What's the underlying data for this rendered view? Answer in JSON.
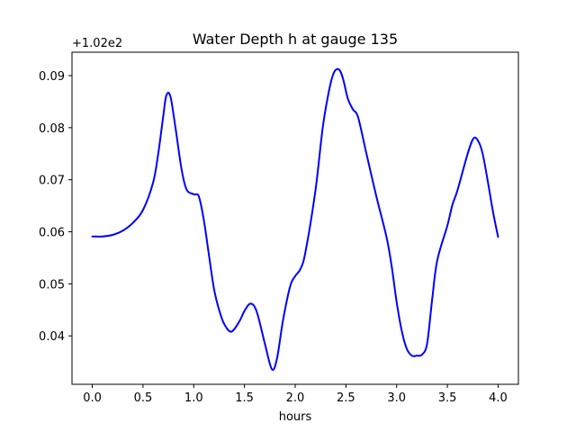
{
  "chart_data": {
    "type": "line",
    "title": "Water Depth h at gauge 135",
    "xlabel": "hours",
    "ylabel": "",
    "offset_label": "+1.02e2",
    "xlim": [
      -0.2,
      4.2
    ],
    "ylim": [
      0.0307,
      0.0945
    ],
    "xticks": [
      0.0,
      0.5,
      1.0,
      1.5,
      2.0,
      2.5,
      3.0,
      3.5,
      4.0
    ],
    "xtick_labels": [
      "0.0",
      "0.5",
      "1.0",
      "1.5",
      "2.0",
      "2.5",
      "3.0",
      "3.5",
      "4.0"
    ],
    "yticks": [
      0.04,
      0.05,
      0.06,
      0.07,
      0.08,
      0.09
    ],
    "ytick_labels": [
      "0.04",
      "0.05",
      "0.06",
      "0.07",
      "0.08",
      "0.09"
    ],
    "grid": false,
    "series": [
      {
        "color": "#0000ff",
        "x": [
          0.0,
          0.1,
          0.2,
          0.3,
          0.4,
          0.5,
          0.6,
          0.65,
          0.7,
          0.73,
          0.77,
          0.82,
          0.88,
          0.93,
          1.0,
          1.05,
          1.1,
          1.15,
          1.2,
          1.25,
          1.3,
          1.37,
          1.45,
          1.5,
          1.56,
          1.62,
          1.7,
          1.77,
          1.82,
          1.88,
          1.95,
          2.0,
          2.05,
          2.1,
          2.2,
          2.27,
          2.33,
          2.38,
          2.43,
          2.47,
          2.52,
          2.57,
          2.62,
          2.7,
          2.8,
          2.9,
          2.95,
          3.0,
          3.05,
          3.1,
          3.15,
          3.2,
          3.25,
          3.3,
          3.35,
          3.4,
          3.5,
          3.55,
          3.6,
          3.7,
          3.76,
          3.81,
          3.85,
          3.9,
          3.95,
          4.0
        ],
        "y": [
          0.0591,
          0.0591,
          0.0594,
          0.0602,
          0.0617,
          0.0642,
          0.0695,
          0.075,
          0.0823,
          0.0862,
          0.086,
          0.08,
          0.072,
          0.0681,
          0.0672,
          0.0668,
          0.0622,
          0.0555,
          0.049,
          0.045,
          0.0423,
          0.0408,
          0.0428,
          0.0448,
          0.0462,
          0.0447,
          0.0386,
          0.0336,
          0.0356,
          0.043,
          0.0495,
          0.0515,
          0.0528,
          0.056,
          0.068,
          0.0798,
          0.0868,
          0.0905,
          0.0912,
          0.0895,
          0.0855,
          0.0835,
          0.082,
          0.0752,
          0.0668,
          0.059,
          0.0535,
          0.0465,
          0.041,
          0.0375,
          0.0362,
          0.0362,
          0.0364,
          0.0385,
          0.047,
          0.0545,
          0.0612,
          0.0652,
          0.068,
          0.075,
          0.078,
          0.0772,
          0.0748,
          0.0695,
          0.0638,
          0.059
        ]
      }
    ]
  }
}
